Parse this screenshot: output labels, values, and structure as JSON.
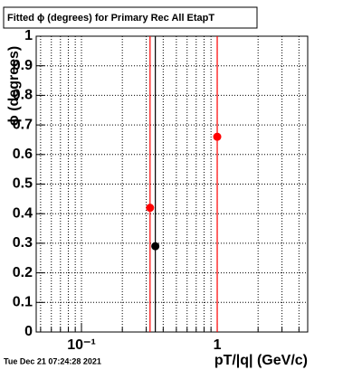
{
  "chart_data": {
    "type": "scatter",
    "title": "Fitted ϕ (degrees) for Primary Rec All EtapT",
    "x_label": "pT/|q| (GeV/c)",
    "y_label": "ϕ (degrees)",
    "timestamp": "Tue Dec 21 07:24:28 2021",
    "log_x": true,
    "grid": true,
    "xlim": [
      0.0464,
      4.64
    ],
    "ylim": [
      0,
      1
    ],
    "xticks": [
      {
        "value": 0.1,
        "label": "10⁻¹"
      },
      1
    ],
    "xminorticks": [
      0.05,
      0.06,
      0.07,
      0.08,
      0.09,
      0.2,
      0.3,
      0.4,
      0.5,
      0.6,
      0.7,
      0.8,
      0.9,
      2,
      3,
      4
    ],
    "yticks": [
      0,
      0.1,
      0.2,
      0.3,
      0.4,
      0.5,
      0.6,
      0.7,
      0.8,
      0.9,
      1
    ],
    "series": [
      {
        "color": "#ff0000",
        "x": [
          0.32,
          1.0
        ],
        "values": [
          0.42,
          0.66
        ]
      },
      {
        "color": "#000000",
        "x": [
          0.35
        ],
        "values": [
          0.29
        ]
      }
    ]
  }
}
